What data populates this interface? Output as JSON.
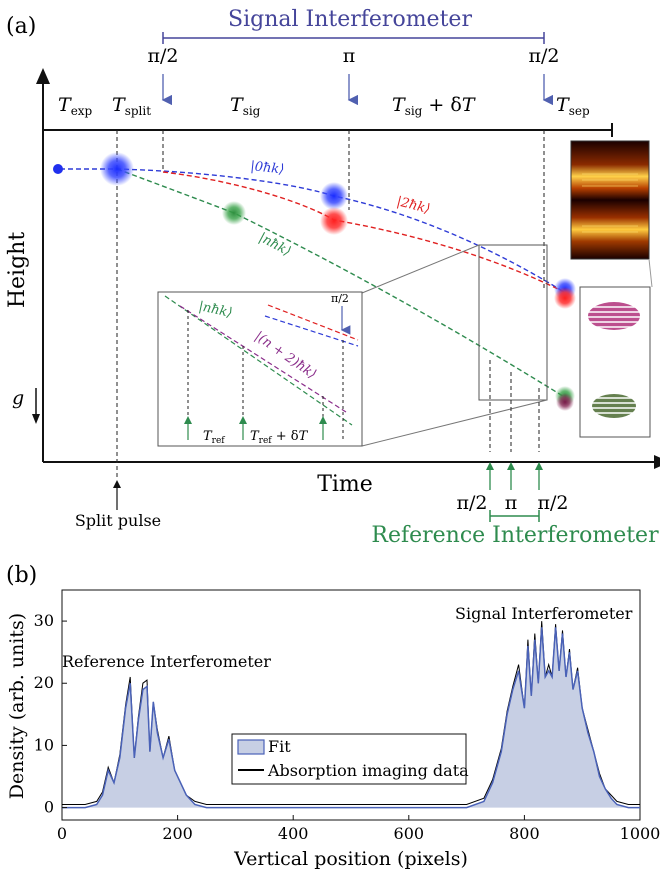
{
  "panel_a": {
    "panel_label": "(a)",
    "signal_interferometer_title": "Signal Interferometer",
    "reference_interferometer_title": "Reference Interferometer",
    "pulses_top": [
      "π/2",
      "π",
      "π/2"
    ],
    "pulses_bottom": [
      "π/2",
      "π",
      "π/2"
    ],
    "phases": [
      "T_exp",
      "T_split",
      "T_sig",
      "T_sig + δT",
      "T_sep"
    ],
    "y_axis_label": "Height",
    "x_axis_label": "Time",
    "gravity_label": "g",
    "split_pulse_label": "Split pulse",
    "state_labels": [
      "|0ħk⟩",
      "|2ħk⟩",
      "|nħk⟩"
    ],
    "inset": {
      "state_labels": [
        "|nħk⟩",
        "|(n + 2)ħk⟩"
      ],
      "pulse_label": "π/2",
      "time_labels": [
        "T_ref",
        "T_ref + δT"
      ]
    },
    "colors": {
      "signal_blue": "#2e3bd6",
      "reference_green": "#2e8b4e",
      "red": "#e02020",
      "purple": "#8a2d8a",
      "axis": "#111111"
    }
  },
  "panel_b": {
    "panel_label": "(b)",
    "legend": [
      "Fit",
      "Absorption imaging data"
    ],
    "annotations": [
      "Signal Interferometer",
      "Reference Interferometer"
    ],
    "chart_data": {
      "type": "area",
      "xlabel": "Vertical position (pixels)",
      "ylabel": "Density (arb. units)",
      "xlim": [
        0,
        1000
      ],
      "ylim": [
        -2,
        35
      ],
      "xticks": [
        0,
        200,
        400,
        600,
        800,
        1000
      ],
      "yticks": [
        0,
        10,
        20,
        30
      ],
      "grid": false,
      "legend_position": "lower-center",
      "series": [
        {
          "name": "Fit",
          "color": "#4a62b8",
          "fill": "#c7cfe4",
          "x": [
            0,
            40,
            60,
            70,
            80,
            90,
            100,
            110,
            118,
            125,
            132,
            140,
            147,
            152,
            158,
            165,
            175,
            185,
            195,
            205,
            215,
            230,
            250,
            300,
            400,
            500,
            600,
            650,
            700,
            730,
            745,
            760,
            770,
            780,
            790,
            800,
            806,
            812,
            818,
            824,
            830,
            836,
            842,
            848,
            854,
            860,
            866,
            872,
            878,
            884,
            892,
            900,
            910,
            920,
            930,
            940,
            950,
            960,
            980,
            1000
          ],
          "y": [
            0,
            0,
            0.5,
            2,
            6,
            4,
            8,
            16,
            20,
            8,
            14,
            19,
            19.5,
            9,
            17,
            12,
            8,
            11,
            6,
            4,
            2,
            0.5,
            0,
            0,
            0,
            0,
            0,
            0,
            0,
            1,
            4,
            9,
            15,
            19,
            22,
            16,
            26,
            18,
            27,
            20,
            29,
            21,
            22,
            21,
            29,
            22,
            28,
            21,
            25,
            19,
            22,
            16,
            12,
            9,
            5,
            3,
            1.5,
            0.5,
            0,
            0
          ]
        },
        {
          "name": "Absorption imaging data",
          "color": "#000000",
          "x": [
            0,
            40,
            60,
            70,
            80,
            90,
            100,
            110,
            118,
            125,
            132,
            140,
            147,
            152,
            158,
            165,
            175,
            185,
            195,
            205,
            215,
            230,
            250,
            300,
            400,
            500,
            600,
            650,
            700,
            730,
            745,
            760,
            770,
            780,
            790,
            800,
            806,
            812,
            818,
            824,
            830,
            836,
            842,
            848,
            854,
            860,
            866,
            872,
            878,
            884,
            892,
            900,
            910,
            920,
            930,
            940,
            950,
            960,
            980,
            1000
          ],
          "y": [
            0.5,
            0.5,
            1,
            2.5,
            6.5,
            4,
            8.5,
            16.5,
            21,
            8,
            14.5,
            20,
            20.5,
            9,
            17,
            12.5,
            8,
            11.5,
            6,
            4,
            2,
            1,
            0.5,
            0.5,
            0.5,
            0.5,
            0.5,
            0.5,
            0.5,
            1.5,
            4.5,
            9.5,
            15.5,
            19.5,
            23,
            16,
            27,
            18,
            28,
            20,
            30,
            21,
            23,
            21,
            29.5,
            22,
            28.5,
            21,
            25.5,
            19,
            22.5,
            16,
            12.5,
            9,
            5.5,
            3,
            2,
            1,
            0.5,
            0.5
          ]
        }
      ]
    }
  }
}
